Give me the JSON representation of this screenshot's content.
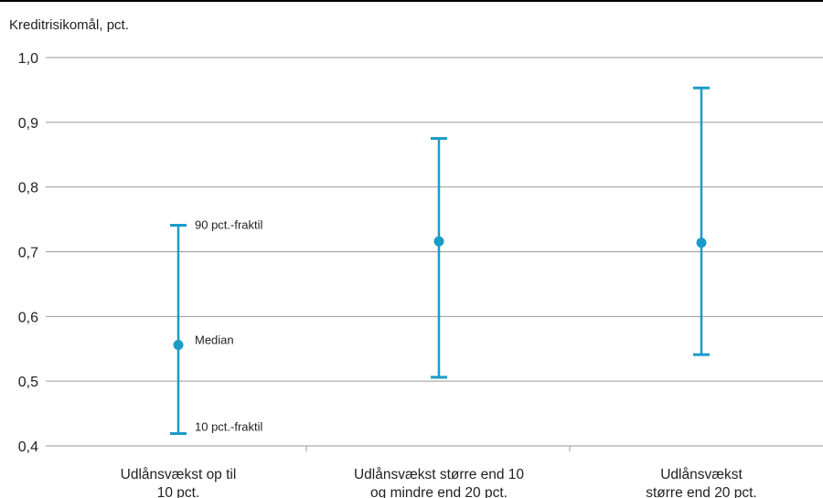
{
  "chart_data": {
    "type": "errorbar",
    "ylabel": "Kreditrisikomål, pct.",
    "ylim": [
      0.4,
      1.0
    ],
    "yticks": [
      "0,4",
      "0,5",
      "0,6",
      "0,7",
      "0,8",
      "0,9",
      "1,0"
    ],
    "ytick_values": [
      0.4,
      0.5,
      0.6,
      0.7,
      0.8,
      0.9,
      1.0
    ],
    "grid": true,
    "categories": [
      [
        "Udlånsvækst op til",
        "10 pct."
      ],
      [
        "Udlånsvækst større end 10",
        "og mindre end 20 pct."
      ],
      [
        "Udlånsvækst",
        "større end 20 pct."
      ]
    ],
    "series": [
      {
        "name": "90 pct.-fraktil",
        "values": [
          0.741,
          0.875,
          0.953
        ]
      },
      {
        "name": "Median",
        "values": [
          0.556,
          0.716,
          0.714
        ]
      },
      {
        "name": "10 pct.-fraktil",
        "values": [
          0.419,
          0.506,
          0.541
        ]
      }
    ],
    "annotations": {
      "upper": "90 pct.-fraktil",
      "median": "Median",
      "lower": "10 pct.-fraktil"
    },
    "color": "#1a9bc9"
  }
}
